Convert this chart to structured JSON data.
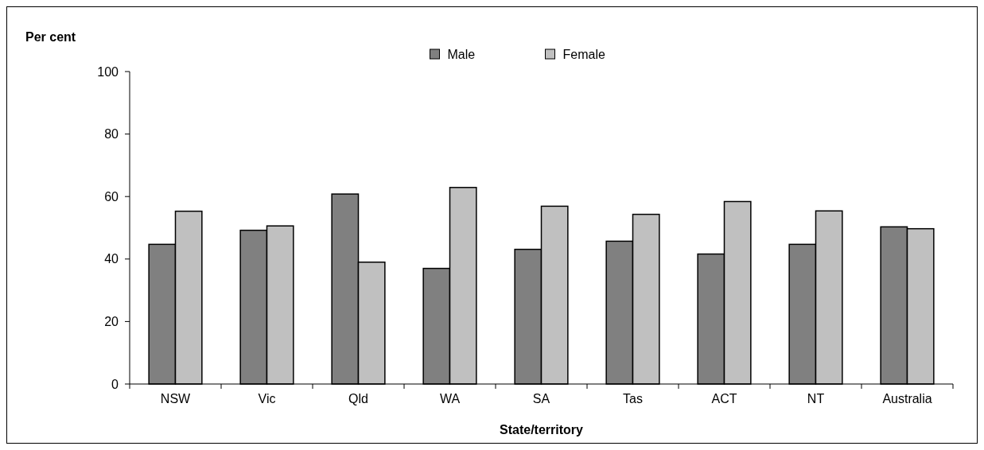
{
  "chart_data": {
    "type": "bar",
    "xlabel": "State/territory",
    "ylabel": "Per cent",
    "categories": [
      "NSW",
      "Vic",
      "Qld",
      "WA",
      "SA",
      "Tas",
      "ACT",
      "NT",
      "Australia"
    ],
    "series": [
      {
        "name": "Male",
        "color": "#808080",
        "values": [
          44.7,
          49.2,
          60.8,
          37.0,
          43.1,
          45.7,
          41.6,
          44.7,
          50.3
        ]
      },
      {
        "name": "Female",
        "color": "#c0c0c0",
        "values": [
          55.3,
          50.6,
          39.0,
          62.9,
          56.9,
          54.3,
          58.4,
          55.4,
          49.7
        ]
      }
    ],
    "ylim": [
      0,
      100
    ],
    "yticks": [
      0,
      20,
      40,
      60,
      80,
      100
    ],
    "legend": "top"
  }
}
